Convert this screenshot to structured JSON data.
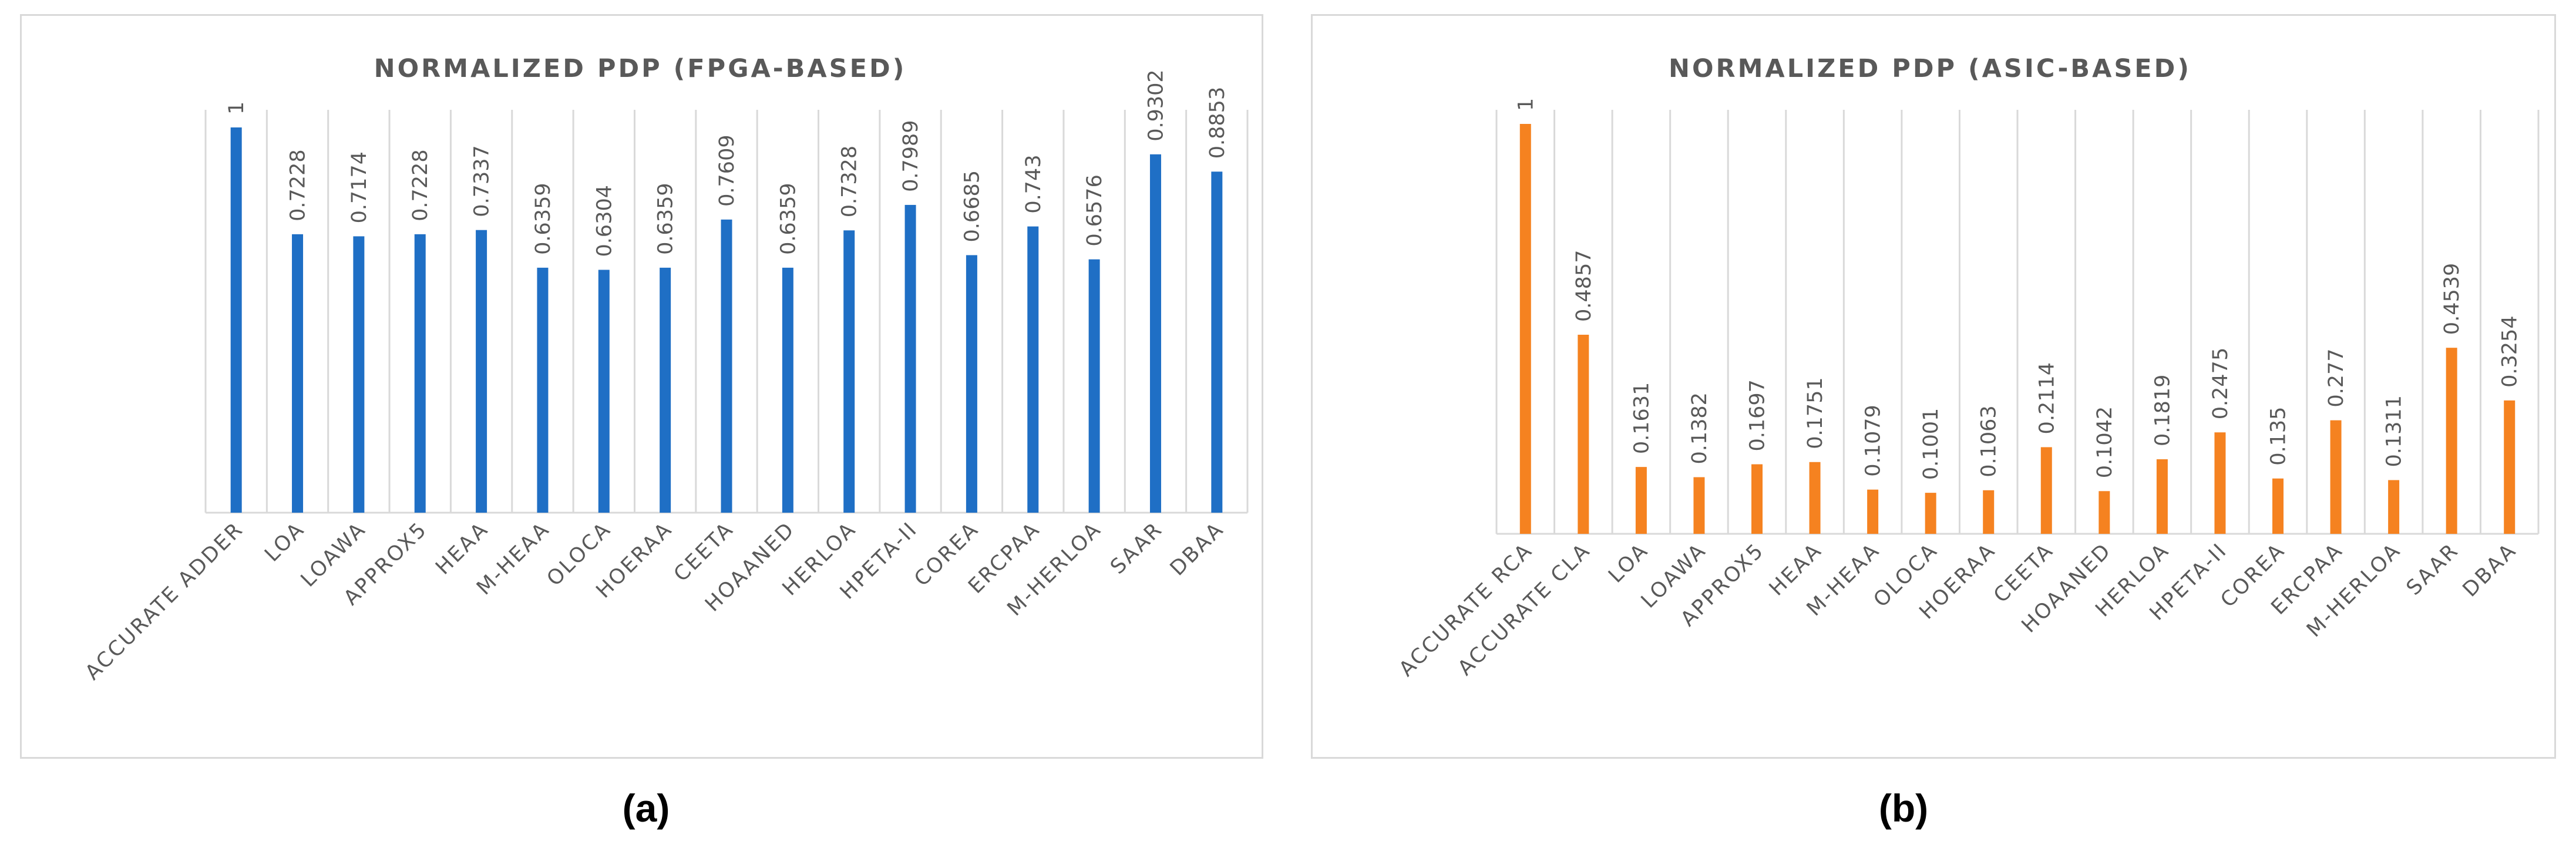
{
  "chart_data": [
    {
      "type": "bar",
      "title": "NORMALIZED PDP (FPGA-BASED)",
      "caption": "(a)",
      "color": "#1f6fc5",
      "ylim": [
        0,
        1
      ],
      "grid": "vertical category separators",
      "categories": [
        "ACCURATE ADDER",
        "LOA",
        "LOAWA",
        "APPROX5",
        "HEAA",
        "M-HEAA",
        "OLOCA",
        "HOERAA",
        "CEETA",
        "HOAANED",
        "HERLOA",
        "HPETA-II",
        "COREA",
        "ERCPAA",
        "M-HERLOA",
        "SAAR",
        "DBAA"
      ],
      "values": [
        1,
        0.7228,
        0.7174,
        0.7228,
        0.7337,
        0.6359,
        0.6304,
        0.6359,
        0.7609,
        0.6359,
        0.7328,
        0.7989,
        0.6685,
        0.743,
        0.6576,
        0.9302,
        0.8853
      ],
      "data_labels": [
        "1",
        "0.7228",
        "0.7174",
        "0.7228",
        "0.7337",
        "0.6359",
        "0.6304",
        "0.6359",
        "0.7609",
        "0.6359",
        "0.7328",
        "0.7989",
        "0.6685",
        "0.743",
        "0.6576",
        "0.9302",
        "0.8853"
      ]
    },
    {
      "type": "bar",
      "title": "NORMALIZED PDP (ASIC-BASED)",
      "caption": "(b)",
      "color": "#f58220",
      "ylim": [
        0,
        1
      ],
      "grid": "vertical category separators",
      "categories": [
        "ACCURATE RCA",
        "ACCURATE CLA",
        "LOA",
        "LOAWA",
        "APPROX5",
        "HEAA",
        "M-HEAA",
        "OLOCA",
        "HOERAA",
        "CEETA",
        "HOAANED",
        "HERLOA",
        "HPETA-II",
        "COREA",
        "ERCPAA",
        "M-HERLOA",
        "SAAR",
        "DBAA"
      ],
      "values": [
        1,
        0.4857,
        0.1631,
        0.1382,
        0.1697,
        0.1751,
        0.1079,
        0.1001,
        0.1063,
        0.2114,
        0.1042,
        0.1819,
        0.2475,
        0.135,
        0.277,
        0.1311,
        0.4539,
        0.3254
      ],
      "data_labels": [
        "1",
        "0.4857",
        "0.1631",
        "0.1382",
        "0.1697",
        "0.1751",
        "0.1079",
        "0.1001",
        "0.1063",
        "0.2114",
        "0.1042",
        "0.1819",
        "0.2475",
        "0.135",
        "0.277",
        "0.1311",
        "0.4539",
        "0.3254"
      ]
    }
  ]
}
